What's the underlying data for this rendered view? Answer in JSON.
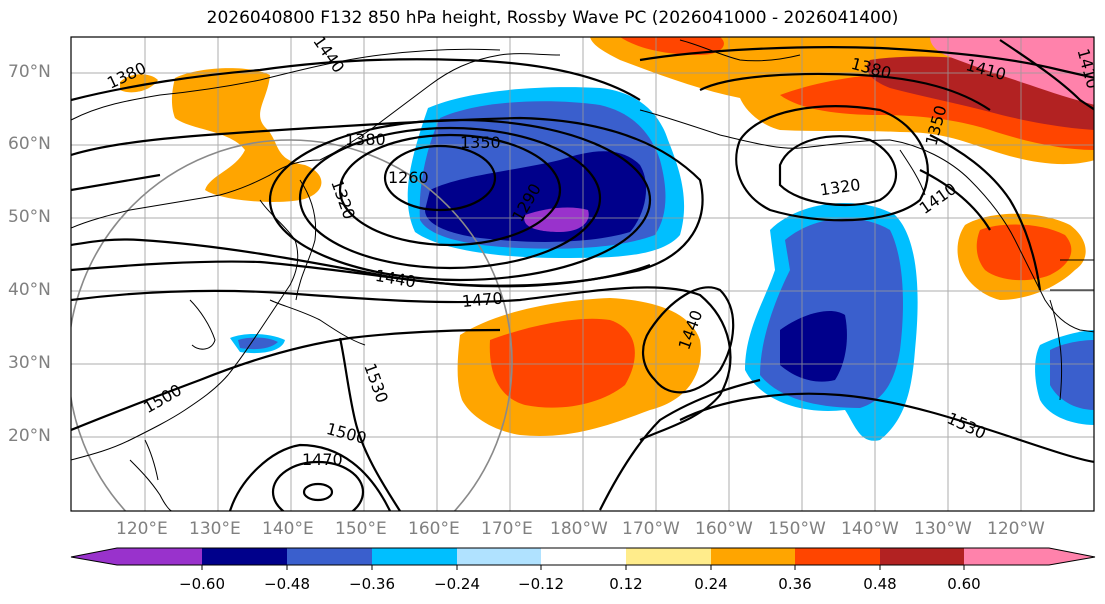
{
  "title": "2026040800 F132 850 hPa height, Rossby Wave PC (2026041000 - 2026041400)",
  "lat_labels": [
    "70°N",
    "60°N",
    "50°N",
    "40°N",
    "30°N",
    "20°N"
  ],
  "lon_labels": [
    "120°E",
    "130°E",
    "140°E",
    "150°E",
    "160°E",
    "170°E",
    "180°W",
    "170°W",
    "160°W",
    "150°W",
    "140°W",
    "130°W",
    "120°W"
  ],
  "contour_labels": [
    "1380",
    "1440",
    "1380",
    "1350",
    "1260",
    "1320",
    "1290",
    "1440",
    "1470",
    "1500",
    "1530",
    "1500",
    "1470",
    "1440",
    "1380",
    "1410",
    "1410",
    "1350",
    "1320",
    "1410",
    "1530"
  ],
  "colorbar": {
    "ticks": [
      "−0.60",
      "−0.48",
      "−0.36",
      "−0.24",
      "−0.12",
      "0.12",
      "0.24",
      "0.36",
      "0.48",
      "0.60"
    ],
    "colors": [
      "#9932cc",
      "#00008b",
      "#3a5fcd",
      "#00bfff",
      "#b0e2ff",
      "#ffffff",
      "#ffec8b",
      "#ffa500",
      "#ff4500",
      "#b22222",
      "#ff82ab"
    ]
  }
}
